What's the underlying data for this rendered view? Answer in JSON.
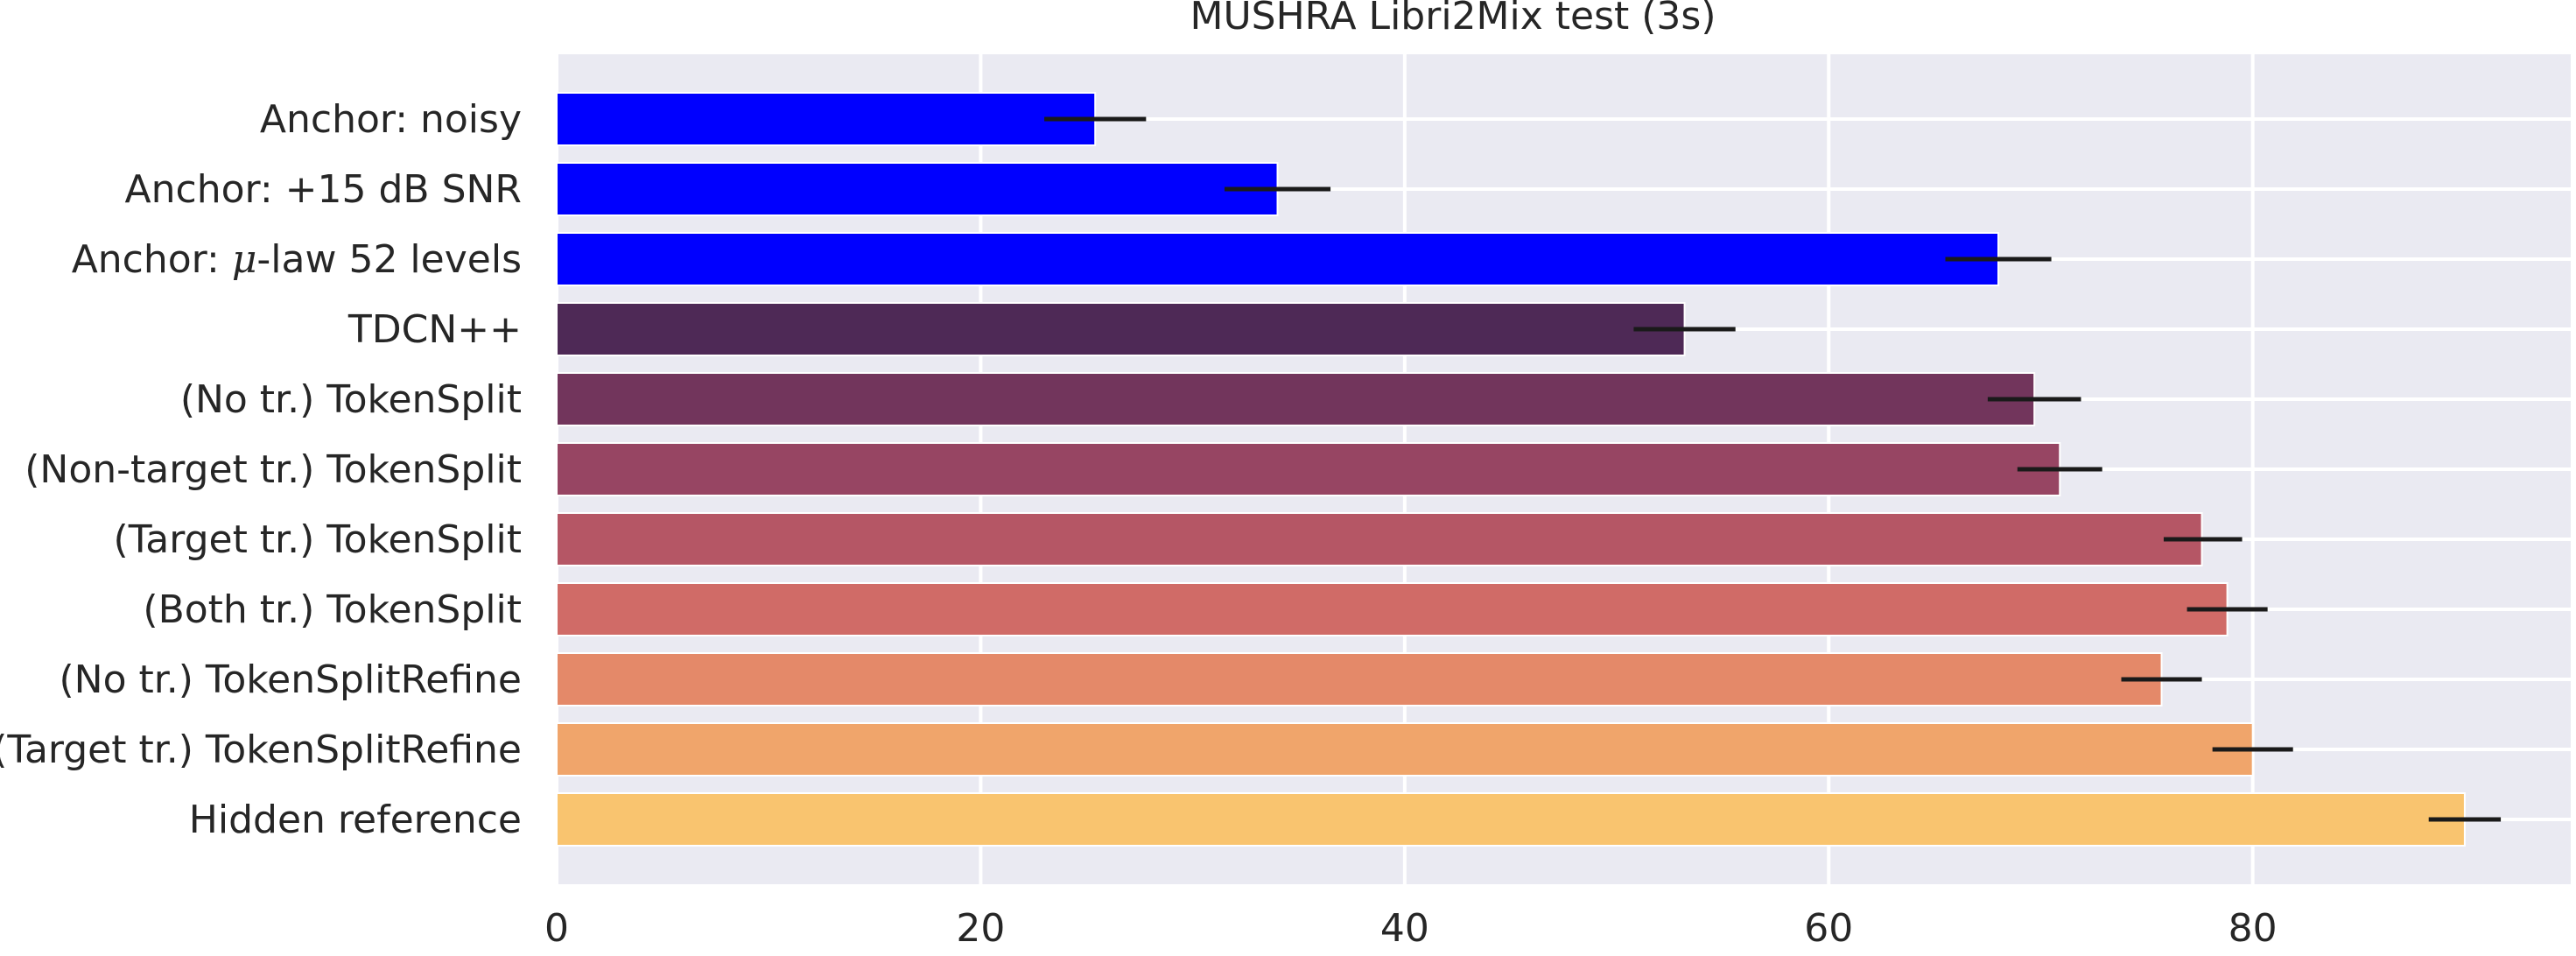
{
  "chart_data": {
    "type": "bar",
    "orientation": "horizontal",
    "title": "MUSHRA Libri2Mix test (3s)",
    "xlabel": "",
    "ylabel": "",
    "xlim": [
      0,
      95
    ],
    "xticks": [
      0,
      20,
      40,
      60,
      80
    ],
    "grid": true,
    "legend": false,
    "categories": [
      "Anchor: noisy",
      "Anchor: +15 dB SNR",
      "Anchor: μ-law 52 levels",
      "TDCN++",
      "(No tr.) TokenSplit",
      "(Non-target tr.) TokenSplit",
      "(Target tr.) TokenSplit",
      "(Both tr.) TokenSplit",
      "(No tr.) TokenSplitRefine",
      "(Target tr.) TokenSplitRefine",
      "Hidden reference"
    ],
    "values": [
      25.4,
      34.0,
      68.0,
      53.2,
      69.7,
      70.9,
      77.6,
      78.8,
      75.7,
      80.0,
      90.0
    ],
    "error_low": [
      23.0,
      31.5,
      65.5,
      50.8,
      67.5,
      68.9,
      75.8,
      76.9,
      73.8,
      78.1,
      88.3
    ],
    "error_high": [
      27.8,
      36.5,
      70.5,
      55.6,
      71.9,
      72.9,
      79.5,
      80.7,
      77.6,
      81.9,
      91.7
    ],
    "colors": [
      "#0000ff",
      "#0000ff",
      "#0000ff",
      "#4e2956",
      "#72355c",
      "#974563",
      "#b55665",
      "#d06b67",
      "#e48969",
      "#f0a56b",
      "#f9c46f"
    ],
    "background_color": "#eaeaf2",
    "grid_color": "#ffffff",
    "errorbar_color": "#1a1a1a"
  }
}
